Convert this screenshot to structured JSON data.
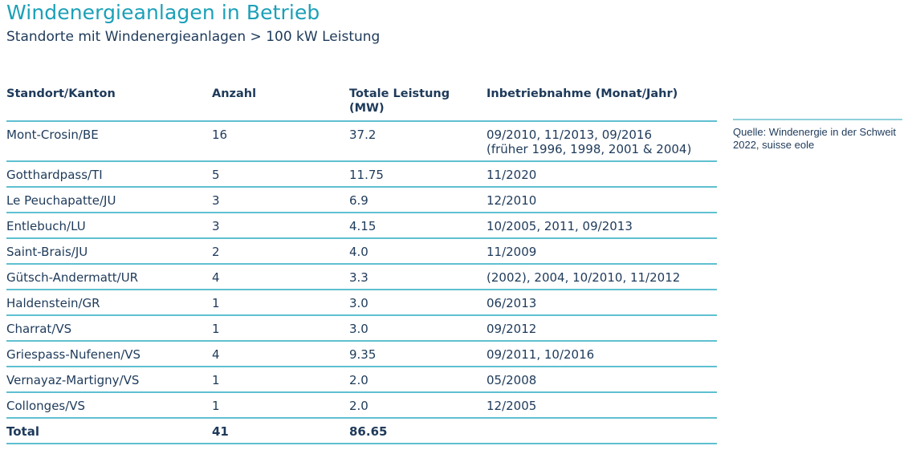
{
  "header": {
    "title": "Windenergieanlagen in Betrieb",
    "subtitle": "Standorte mit Windenergieanlagen > 100 kW Leistung"
  },
  "table": {
    "columns": {
      "standort": "Standort/Kanton",
      "anzahl": "Anzahl",
      "leistung_line1": "Totale Leistung",
      "leistung_line2": "(MW)",
      "inbetriebnahme": "Inbetriebnahme (Monat/Jahr)"
    },
    "rows": [
      {
        "standort": "Mont-Crosin/BE",
        "anzahl": "16",
        "leistung": "37.2",
        "inbetriebnahme": "09/2010, 11/2013, 09/2016",
        "inbetriebnahme_note": "(früher 1996, 1998, 2001 & 2004)"
      },
      {
        "standort": "Gotthardpass/TI",
        "anzahl": "5",
        "leistung": "11.75",
        "inbetriebnahme": "11/2020"
      },
      {
        "standort": "Le Peuchapatte/JU",
        "anzahl": "3",
        "leistung": "6.9",
        "inbetriebnahme": "12/2010"
      },
      {
        "standort": "Entlebuch/LU",
        "anzahl": "3",
        "leistung": "4.15",
        "inbetriebnahme": "10/2005, 2011, 09/2013"
      },
      {
        "standort": "Saint-Brais/JU",
        "anzahl": "2",
        "leistung": "4.0",
        "inbetriebnahme": "11/2009"
      },
      {
        "standort": "Gütsch-Andermatt/UR",
        "anzahl": "4",
        "leistung": "3.3",
        "inbetriebnahme": "(2002), 2004, 10/2010, 11/2012"
      },
      {
        "standort": "Haldenstein/GR",
        "anzahl": "1",
        "leistung": "3.0",
        "inbetriebnahme": "06/2013"
      },
      {
        "standort": "Charrat/VS",
        "anzahl": "1",
        "leistung": "3.0",
        "inbetriebnahme": "09/2012"
      },
      {
        "standort": "Griespass-Nufenen/VS",
        "anzahl": "4",
        "leistung": "9.35",
        "inbetriebnahme": "09/2011, 10/2016"
      },
      {
        "standort": "Vernayaz-Martigny/VS",
        "anzahl": "1",
        "leistung": "2.0",
        "inbetriebnahme": "05/2008"
      },
      {
        "standort": "Collonges/VS",
        "anzahl": "1",
        "leistung": "2.0",
        "inbetriebnahme": "12/2005"
      }
    ],
    "total": {
      "label": "Total",
      "anzahl": "41",
      "leistung": "86.65"
    }
  },
  "source": {
    "text": "Quelle: Windenergie in der Schweit 2022, suisse eole"
  },
  "colors": {
    "title": "#1ba0b8",
    "text": "#1e3a5a",
    "rule": "#5fc0d0"
  }
}
